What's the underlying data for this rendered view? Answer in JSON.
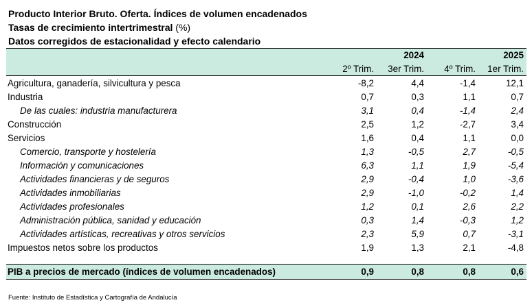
{
  "title": {
    "line1": "Producto Interior Bruto. Oferta. Índices de volumen encadenados",
    "line2": "Tasas de crecimiento intertrimestral",
    "line2_unit": "(%)",
    "line3": "Datos corregidos de estacionalidad y efecto calendario"
  },
  "header": {
    "year_2024": "2024",
    "year_2025": "2025",
    "quarters": [
      "2º Trim.",
      "3er Trim.",
      "4º Trim.",
      "1er Trim."
    ]
  },
  "rows": [
    {
      "label": "Agricultura, ganadería, silvicultura y pesca",
      "values": [
        "-8,2",
        "4,4",
        "-1,4",
        "12,1"
      ]
    },
    {
      "label": "Industria",
      "values": [
        "0,7",
        "0,3",
        "1,1",
        "0,7"
      ]
    },
    {
      "label": "De las cuales: industria manufacturera",
      "values": [
        "3,1",
        "0,4",
        "-1,4",
        "2,4"
      ]
    },
    {
      "label": "Construcción",
      "values": [
        "2,5",
        "1,2",
        "-2,7",
        "3,4"
      ]
    },
    {
      "label": "Servicios",
      "values": [
        "1,6",
        "0,4",
        "1,1",
        "0,0"
      ]
    },
    {
      "label": "Comercio, transporte y hostelería",
      "values": [
        "1,3",
        "-0,5",
        "2,7",
        "-0,5"
      ]
    },
    {
      "label": "Información y comunicaciones",
      "values": [
        "6,3",
        "1,1",
        "1,9",
        "-5,4"
      ]
    },
    {
      "label": "Actividades financieras y de seguros",
      "values": [
        "2,9",
        "-0,4",
        "1,0",
        "-3,6"
      ]
    },
    {
      "label": "Actividades inmobiliarias",
      "values": [
        "2,9",
        "-1,0",
        "-0,2",
        "1,4"
      ]
    },
    {
      "label": "Actividades profesionales",
      "values": [
        "1,2",
        "0,1",
        "2,6",
        "2,2"
      ]
    },
    {
      "label": "Administración pública, sanidad y educación",
      "values": [
        "0,3",
        "1,4",
        "-0,3",
        "1,2"
      ]
    },
    {
      "label": "Actividades artísticas, recreativas y otros servicios",
      "values": [
        "2,3",
        "5,9",
        "0,7",
        "-3,1"
      ]
    },
    {
      "label": "Impuestos netos sobre los productos",
      "values": [
        "1,9",
        "1,3",
        "2,1",
        "-4,8"
      ]
    }
  ],
  "total": {
    "label": "PIB a precios de mercado (índices de volumen encadenados)",
    "values": [
      "0,9",
      "0,8",
      "0,8",
      "0,6"
    ]
  },
  "source": "Fuente: Instituto de Estadística y Cartografía de Andalucía",
  "colors": {
    "header_fill": "#ccebe0"
  }
}
